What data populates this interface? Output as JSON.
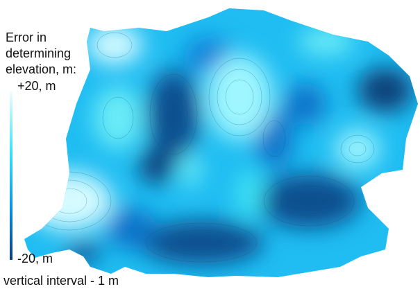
{
  "legend": {
    "title": [
      "Error in",
      "determining",
      "elevation, m:"
    ],
    "max_label": "+20, m",
    "min_label": "-20, m"
  },
  "note": "vertical interval - 1 m"
}
